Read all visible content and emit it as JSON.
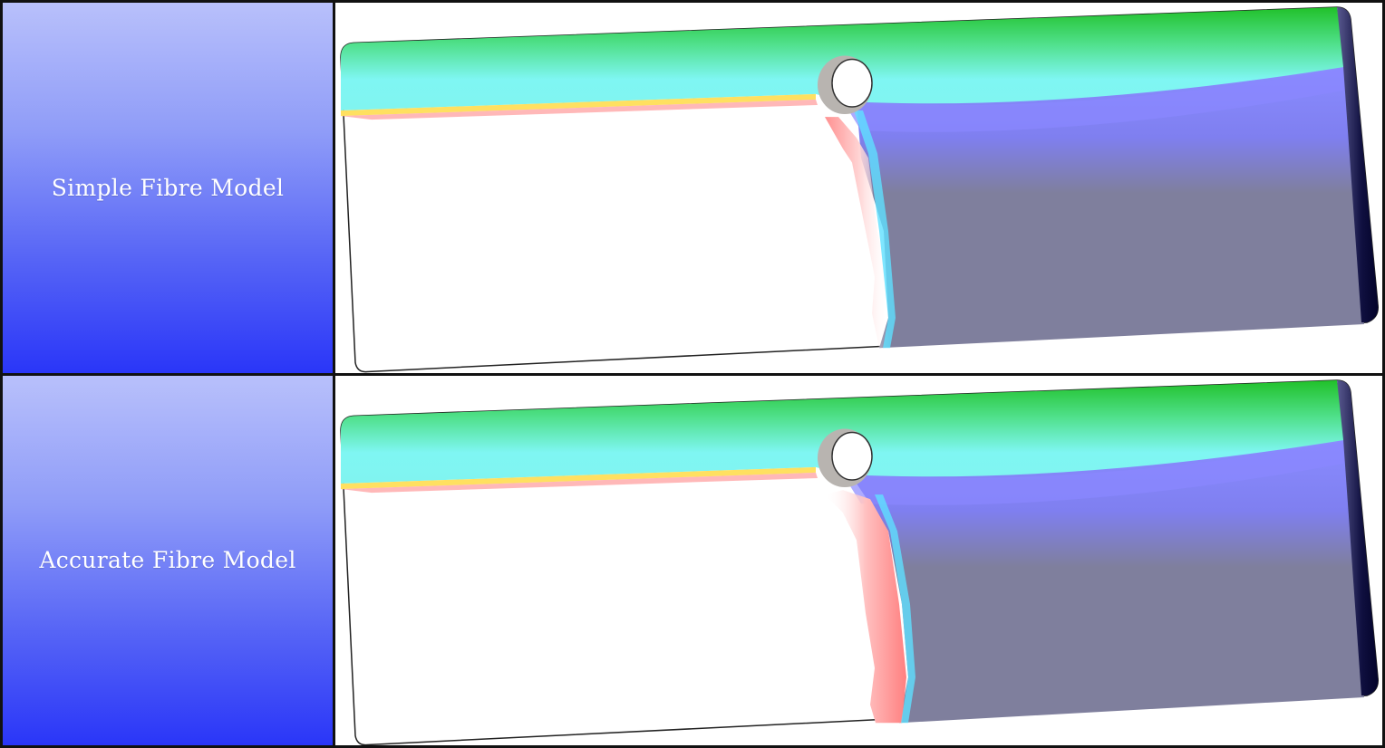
{
  "rows": [
    {
      "label": "Simple Fibre Model"
    },
    {
      "label": "Accurate Fibre Model"
    }
  ],
  "colors": {
    "border": "#111111",
    "label_gradient_top": "#b8c0fb",
    "label_gradient_bottom": "#2a36f8",
    "label_text": "#ffffff",
    "fibre_top": "#21c12a",
    "fibre_cyan": "#7ff6f3",
    "fibre_blue": "#7d7dff",
    "fibre_slate": "#7f7f9d",
    "fibre_edge": "#020229"
  }
}
